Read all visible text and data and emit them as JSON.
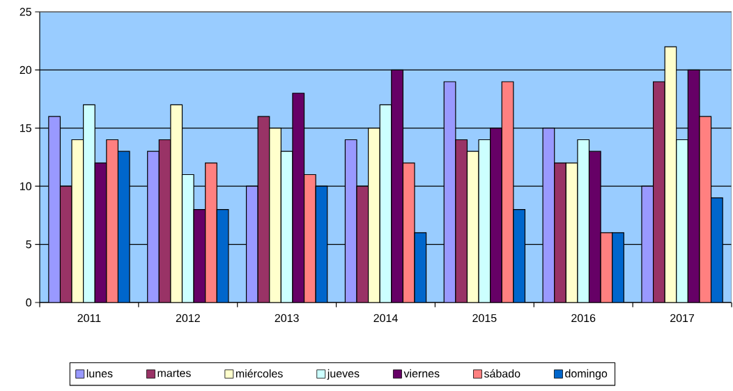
{
  "chart_data": {
    "type": "bar",
    "categories": [
      "2011",
      "2012",
      "2013",
      "2014",
      "2015",
      "2016",
      "2017"
    ],
    "series": [
      {
        "name": "lunes",
        "color": "#9999ff",
        "values": [
          16,
          13,
          10,
          14,
          19,
          15,
          10
        ]
      },
      {
        "name": "martes",
        "color": "#993366",
        "values": [
          10,
          14,
          16,
          10,
          14,
          12,
          19
        ]
      },
      {
        "name": "miércoles",
        "color": "#ffffcc",
        "values": [
          14,
          17,
          15,
          15,
          13,
          12,
          22
        ]
      },
      {
        "name": "jueves",
        "color": "#ccffff",
        "values": [
          17,
          11,
          13,
          17,
          14,
          14,
          14
        ]
      },
      {
        "name": "viernes",
        "color": "#660066",
        "values": [
          12,
          8,
          18,
          20,
          15,
          13,
          20
        ]
      },
      {
        "name": "sábado",
        "color": "#ff8080",
        "values": [
          14,
          12,
          11,
          12,
          19,
          6,
          16
        ]
      },
      {
        "name": "domingo",
        "color": "#0066cc",
        "values": [
          13,
          8,
          10,
          6,
          8,
          6,
          9
        ]
      }
    ],
    "ylim": [
      0,
      25
    ],
    "yticks": [
      0,
      5,
      10,
      15,
      20,
      25
    ],
    "grid": "y",
    "legend": "bottom"
  }
}
